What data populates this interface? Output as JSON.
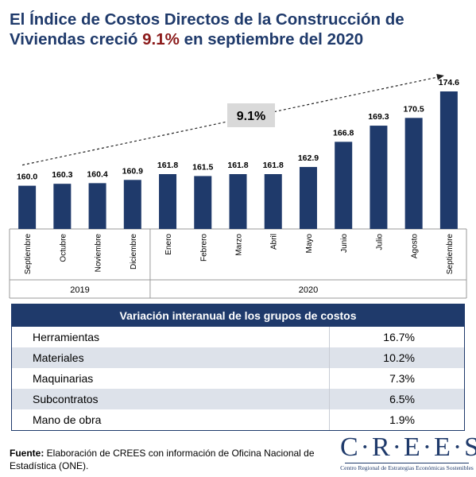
{
  "title": {
    "part1": "El Índice de Costos Directos de la Construcción de Viviendas creció ",
    "highlight": "9.1%",
    "part2": " en septiembre del 2020"
  },
  "chart_data": {
    "type": "bar",
    "categories": [
      "Septiembre",
      "Octubre",
      "Noviembre",
      "Diciembre",
      "Enero",
      "Febrero",
      "Marzo",
      "Abril",
      "Mayo",
      "Junio",
      "Julio",
      "Agosto",
      "Septiembre"
    ],
    "values": [
      160.0,
      160.3,
      160.4,
      160.9,
      161.8,
      161.5,
      161.8,
      161.8,
      162.9,
      166.8,
      169.3,
      170.5,
      174.6
    ],
    "value_labels": [
      "160.0",
      "160.3",
      "160.4",
      "160.9",
      "161.8",
      "161.5",
      "161.8",
      "161.8",
      "162.9",
      "166.8",
      "169.3",
      "170.5",
      "174.6"
    ],
    "groups": [
      {
        "label": "2019",
        "start": 0,
        "end": 3
      },
      {
        "label": "2020",
        "start": 4,
        "end": 12
      }
    ],
    "annotation": "9.1%",
    "bar_color": "#1f3a6b",
    "grid": false
  },
  "table": {
    "header": "Variación interanual de los grupos de costos",
    "rows": [
      {
        "name": "Herramientas",
        "value": "16.7%"
      },
      {
        "name": "Materiales",
        "value": "10.2%"
      },
      {
        "name": "Maquinarias",
        "value": "7.3%"
      },
      {
        "name": "Subcontratos",
        "value": "6.5%"
      },
      {
        "name": "Mano de obra",
        "value": "1.9%"
      }
    ]
  },
  "source": {
    "label": "Fuente:",
    "text": " Elaboración de CREES con información de Oficina Nacional de Estadística (ONE)."
  },
  "logo": {
    "name": "C·R·E·E·S",
    "subtitle": "Centro Regional de Estrategias Económicas Sostenibles"
  },
  "colors": {
    "navy": "#1f3a6b",
    "highlight": "#8b1a1a",
    "row_alt": "#dde2ea"
  }
}
